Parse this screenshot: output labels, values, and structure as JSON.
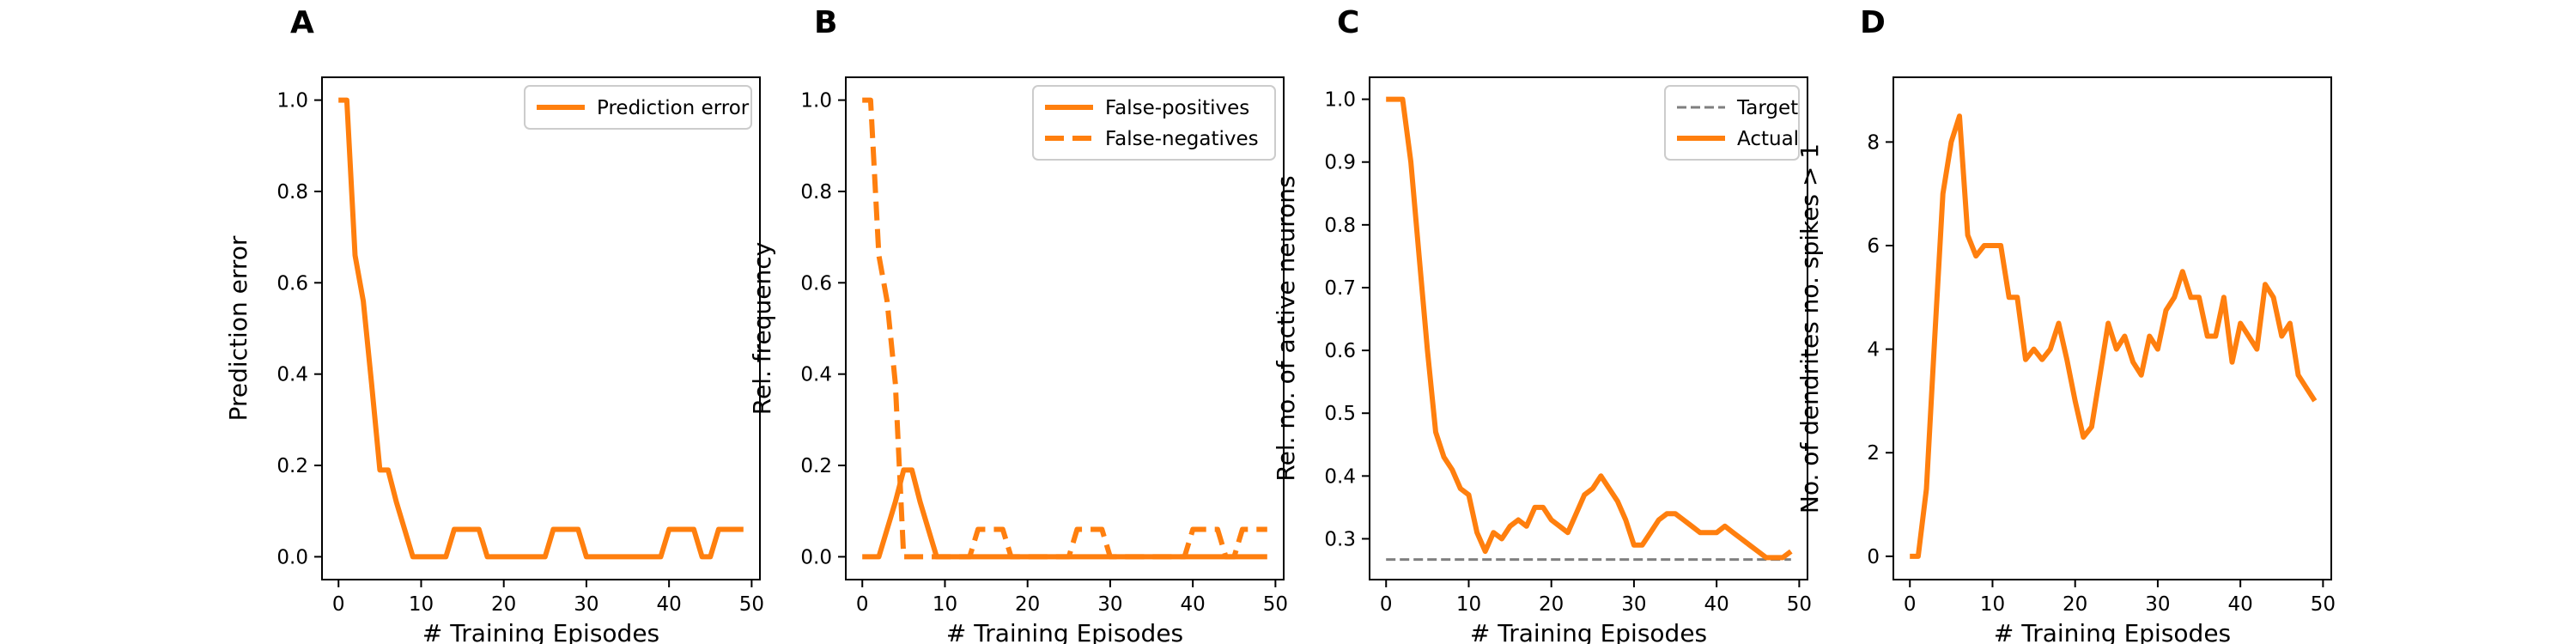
{
  "colors": {
    "orange": "#ff7f0e",
    "target": "#7f7f7f",
    "axis": "#000000",
    "legend_border": "#cccccc"
  },
  "chart_data": [
    {
      "type": "line",
      "panel": "A",
      "xlabel": "# Training Episodes",
      "ylabel": "Prediction error",
      "xlim": [
        -2,
        51
      ],
      "ylim": [
        -0.05,
        1.05
      ],
      "xticks": [
        0,
        10,
        20,
        30,
        40,
        50
      ],
      "yticks": [
        0.0,
        0.2,
        0.4,
        0.6,
        0.8,
        1.0
      ],
      "xtick_labels": [
        "0",
        "10",
        "20",
        "30",
        "40",
        "50"
      ],
      "ytick_labels": [
        "0.0",
        "0.2",
        "0.4",
        "0.6",
        "0.8",
        "1.0"
      ],
      "legend_position": "upper-right",
      "series": [
        {
          "name": "Prediction error",
          "style": "solid",
          "x": [
            0,
            1,
            2,
            3,
            4,
            5,
            6,
            7,
            8,
            9,
            10,
            11,
            12,
            13,
            14,
            15,
            16,
            17,
            18,
            19,
            20,
            21,
            22,
            23,
            24,
            25,
            26,
            27,
            28,
            29,
            30,
            31,
            32,
            33,
            34,
            35,
            36,
            37,
            38,
            39,
            40,
            41,
            42,
            43,
            44,
            45,
            46,
            47,
            48,
            49
          ],
          "y": [
            1.0,
            1.0,
            0.66,
            0.56,
            0.38,
            0.19,
            0.19,
            0.12,
            0.06,
            0.0,
            0.0,
            0.0,
            0.0,
            0.0,
            0.06,
            0.06,
            0.06,
            0.06,
            0.0,
            0.0,
            0.0,
            0.0,
            0.0,
            0.0,
            0.0,
            0.0,
            0.06,
            0.06,
            0.06,
            0.06,
            0.0,
            0.0,
            0.0,
            0.0,
            0.0,
            0.0,
            0.0,
            0.0,
            0.0,
            0.0,
            0.06,
            0.06,
            0.06,
            0.06,
            0.0,
            0.0,
            0.06,
            0.06,
            0.06,
            0.06
          ]
        }
      ]
    },
    {
      "type": "line",
      "panel": "B",
      "xlabel": "# Training Episodes",
      "ylabel": "Rel. frequency",
      "xlim": [
        -2,
        51
      ],
      "ylim": [
        -0.05,
        1.05
      ],
      "xticks": [
        0,
        10,
        20,
        30,
        40,
        50
      ],
      "yticks": [
        0.0,
        0.2,
        0.4,
        0.6,
        0.8,
        1.0
      ],
      "xtick_labels": [
        "0",
        "10",
        "20",
        "30",
        "40",
        "50"
      ],
      "ytick_labels": [
        "0.0",
        "0.2",
        "0.4",
        "0.6",
        "0.8",
        "1.0"
      ],
      "legend_position": "upper-right",
      "series": [
        {
          "name": "False-positives",
          "style": "solid",
          "x": [
            0,
            1,
            2,
            3,
            4,
            5,
            6,
            7,
            8,
            9,
            10,
            15,
            20,
            25,
            30,
            35,
            40,
            45,
            49
          ],
          "y": [
            0.0,
            0.0,
            0.0,
            0.06,
            0.12,
            0.19,
            0.19,
            0.12,
            0.06,
            0.0,
            0.0,
            0.0,
            0.0,
            0.0,
            0.0,
            0.0,
            0.0,
            0.0,
            0.0
          ]
        },
        {
          "name": "False-negatives",
          "style": "dashed",
          "x": [
            0,
            1,
            2,
            3,
            4,
            5,
            6,
            7,
            8,
            9,
            10,
            11,
            12,
            13,
            14,
            15,
            16,
            17,
            18,
            19,
            20,
            21,
            22,
            23,
            24,
            25,
            26,
            27,
            28,
            29,
            30,
            31,
            32,
            33,
            34,
            35,
            36,
            37,
            38,
            39,
            40,
            41,
            42,
            43,
            44,
            45,
            46,
            47,
            48,
            49
          ],
          "y": [
            1.0,
            1.0,
            0.66,
            0.56,
            0.38,
            0.0,
            0.0,
            0.0,
            0.0,
            0.0,
            0.0,
            0.0,
            0.0,
            0.0,
            0.06,
            0.06,
            0.06,
            0.06,
            0.0,
            0.0,
            0.0,
            0.0,
            0.0,
            0.0,
            0.0,
            0.0,
            0.06,
            0.06,
            0.06,
            0.06,
            0.0,
            0.0,
            0.0,
            0.0,
            0.0,
            0.0,
            0.0,
            0.0,
            0.0,
            0.0,
            0.06,
            0.06,
            0.06,
            0.06,
            0.0,
            0.0,
            0.06,
            0.06,
            0.06,
            0.06
          ]
        }
      ]
    },
    {
      "type": "line",
      "panel": "C",
      "xlabel": "# Training Episodes",
      "ylabel": "Rel. no. of active neurons",
      "xlim": [
        -2,
        51
      ],
      "ylim": [
        0.235,
        1.035
      ],
      "xticks": [
        0,
        10,
        20,
        30,
        40,
        50
      ],
      "yticks": [
        0.3,
        0.4,
        0.5,
        0.6,
        0.7,
        0.8,
        0.9,
        1.0
      ],
      "xtick_labels": [
        "0",
        "10",
        "20",
        "30",
        "40",
        "50"
      ],
      "ytick_labels": [
        "0.3",
        "0.4",
        "0.5",
        "0.6",
        "0.7",
        "0.8",
        "0.9",
        "1.0"
      ],
      "legend_position": "upper-right",
      "series": [
        {
          "name": "Target",
          "style": "dashed",
          "x": [
            0,
            49
          ],
          "y": [
            0.267,
            0.267
          ]
        },
        {
          "name": "Actual",
          "style": "solid",
          "x": [
            0,
            1,
            2,
            3,
            4,
            5,
            6,
            7,
            8,
            9,
            10,
            11,
            12,
            13,
            14,
            15,
            16,
            17,
            18,
            19,
            20,
            21,
            22,
            23,
            24,
            25,
            26,
            27,
            28,
            29,
            30,
            31,
            32,
            33,
            34,
            35,
            36,
            37,
            38,
            39,
            40,
            41,
            42,
            43,
            44,
            45,
            46,
            47,
            48,
            49
          ],
          "y": [
            1.0,
            1.0,
            1.0,
            0.9,
            0.75,
            0.6,
            0.47,
            0.43,
            0.41,
            0.38,
            0.37,
            0.31,
            0.28,
            0.31,
            0.3,
            0.32,
            0.33,
            0.32,
            0.35,
            0.35,
            0.33,
            0.32,
            0.31,
            0.34,
            0.37,
            0.38,
            0.4,
            0.38,
            0.36,
            0.33,
            0.29,
            0.29,
            0.31,
            0.33,
            0.34,
            0.34,
            0.33,
            0.32,
            0.31,
            0.31,
            0.31,
            0.32,
            0.31,
            0.3,
            0.29,
            0.28,
            0.27,
            0.27,
            0.27,
            0.28
          ]
        }
      ]
    },
    {
      "type": "line",
      "panel": "D",
      "xlabel": "# Training Episodes",
      "ylabel": "No. of dendrites no. spikes > 1",
      "xlim": [
        -2,
        51
      ],
      "ylim": [
        -0.45,
        9.25
      ],
      "xticks": [
        0,
        10,
        20,
        30,
        40,
        50
      ],
      "yticks": [
        0,
        2,
        4,
        6,
        8
      ],
      "xtick_labels": [
        "0",
        "10",
        "20",
        "30",
        "40",
        "50"
      ],
      "ytick_labels": [
        "0",
        "2",
        "4",
        "6",
        "8"
      ],
      "legend_position": "none",
      "series": [
        {
          "name": "",
          "style": "solid",
          "x": [
            0,
            1,
            2,
            3,
            4,
            5,
            6,
            7,
            8,
            9,
            10,
            11,
            12,
            13,
            14,
            15,
            16,
            17,
            18,
            19,
            20,
            21,
            22,
            23,
            24,
            25,
            26,
            27,
            28,
            29,
            30,
            31,
            32,
            33,
            34,
            35,
            36,
            37,
            38,
            39,
            40,
            41,
            42,
            43,
            44,
            45,
            46,
            47,
            48,
            49
          ],
          "y": [
            0,
            0,
            1.3,
            4.2,
            7.0,
            8.0,
            8.5,
            6.2,
            5.8,
            6.0,
            6.0,
            6.0,
            5.0,
            5.0,
            3.8,
            4.0,
            3.8,
            4.0,
            4.5,
            3.8,
            3.0,
            2.3,
            2.5,
            3.5,
            4.5,
            4.0,
            4.25,
            3.75,
            3.5,
            4.25,
            4.0,
            4.75,
            5.0,
            5.5,
            5.0,
            5.0,
            4.25,
            4.25,
            5.0,
            3.75,
            4.5,
            4.25,
            4.0,
            5.25,
            5.0,
            4.25,
            4.5,
            3.5,
            3.25,
            3.0
          ]
        }
      ]
    }
  ]
}
